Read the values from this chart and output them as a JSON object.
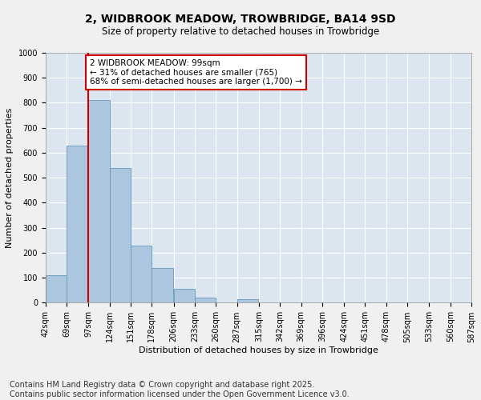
{
  "title": "2, WIDBROOK MEADOW, TROWBRIDGE, BA14 9SD",
  "subtitle": "Size of property relative to detached houses in Trowbridge",
  "xlabel": "Distribution of detached houses by size in Trowbridge",
  "ylabel": "Number of detached properties",
  "footnote1": "Contains HM Land Registry data © Crown copyright and database right 2025.",
  "footnote2": "Contains public sector information licensed under the Open Government Licence v3.0.",
  "annotation_line1": "2 WIDBROOK MEADOW: 99sqm",
  "annotation_line2": "← 31% of detached houses are smaller (765)",
  "annotation_line3": "68% of semi-detached houses are larger (1,700) →",
  "bin_edges": [
    42,
    69,
    97,
    124,
    151,
    178,
    206,
    233,
    260,
    287,
    315,
    342,
    369,
    396,
    424,
    451,
    478,
    505,
    533,
    560,
    587
  ],
  "bin_labels": [
    "42sqm",
    "69sqm",
    "97sqm",
    "124sqm",
    "151sqm",
    "178sqm",
    "206sqm",
    "233sqm",
    "260sqm",
    "287sqm",
    "315sqm",
    "342sqm",
    "369sqm",
    "396sqm",
    "424sqm",
    "451sqm",
    "478sqm",
    "505sqm",
    "533sqm",
    "560sqm",
    "587sqm"
  ],
  "bar_values": [
    110,
    630,
    810,
    540,
    230,
    140,
    55,
    20,
    0,
    15,
    0,
    0,
    0,
    0,
    0,
    0,
    0,
    0,
    0,
    0
  ],
  "bar_color": "#adc6e0",
  "bar_edgecolor": "#6699bb",
  "vline_color": "#cc0000",
  "vline_x_bin": 2,
  "ylim": [
    0,
    1000
  ],
  "yticks": [
    0,
    100,
    200,
    300,
    400,
    500,
    600,
    700,
    800,
    900,
    1000
  ],
  "bg_color": "#dce6f0",
  "fig_bg_color": "#f0f0f0",
  "grid_color": "#ffffff",
  "annotation_box_edgecolor": "#cc0000",
  "title_fontsize": 10,
  "subtitle_fontsize": 8.5,
  "axis_label_fontsize": 8,
  "tick_fontsize": 7,
  "footnote_fontsize": 7,
  "annotation_fontsize": 7.5
}
